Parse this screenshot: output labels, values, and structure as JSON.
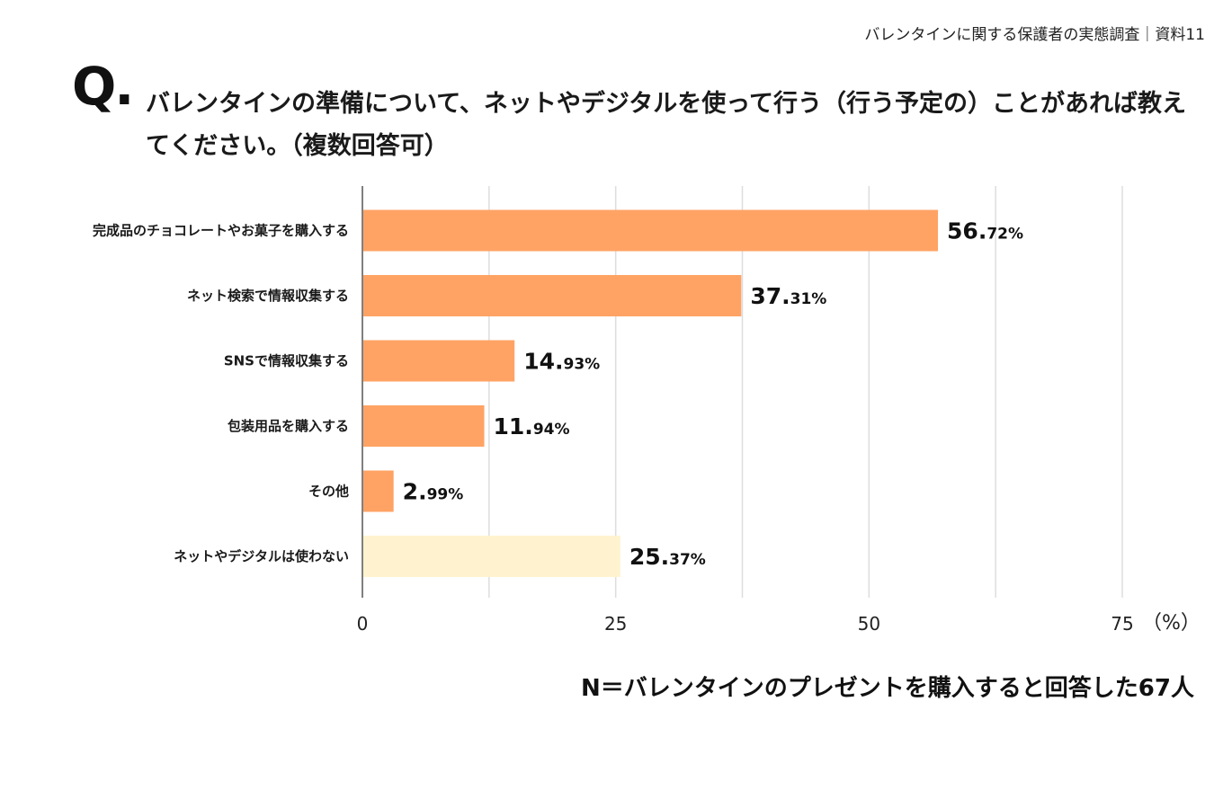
{
  "header_note": "バレンタインに関する保護者の実態調査｜資料11",
  "question": {
    "mark": "Q.",
    "text": "バレンタインの準備について、ネットやデジタルを使って行う（行う予定の）ことがあれば教えてください。（複数回答可）"
  },
  "chart_data": {
    "type": "bar",
    "orientation": "horizontal",
    "categories": [
      "完成品のチョコレートやお菓子を購入する",
      "ネット検索で情報収集する",
      "SNSで情報収集する",
      "包装用品を購入する",
      "その他",
      "ネットやデジタルは使わない"
    ],
    "values": [
      56.72,
      37.31,
      14.93,
      11.94,
      2.99,
      25.37
    ],
    "value_labels_int": [
      "56.",
      "37.",
      "14.",
      "11.",
      "2.",
      "25."
    ],
    "value_labels_dec": [
      "72%",
      "31%",
      "93%",
      "94%",
      "99%",
      "37%"
    ],
    "colors": [
      "#FFA365",
      "#FFA365",
      "#FFA365",
      "#FFA365",
      "#FFA365",
      "#FFF3CF"
    ],
    "xlim": [
      0,
      75
    ],
    "xticks": [
      0,
      25,
      50,
      75
    ],
    "tick_labels": [
      "0",
      "25",
      "50",
      "75"
    ],
    "xlabel": "（%）",
    "grid": true
  },
  "footnote": "N＝バレンタインのプレゼントを購入すると回答した67人"
}
